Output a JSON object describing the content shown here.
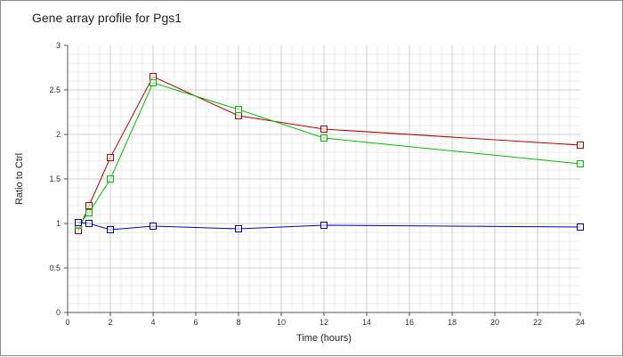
{
  "chart_data": {
    "type": "line",
    "title": "Gene array profile for Pgs1",
    "xlabel": "Time (hours)",
    "ylabel": "Ratio to Ctrl",
    "xlim": [
      0,
      24
    ],
    "ylim": [
      0,
      3
    ],
    "x_ticks": [
      "0",
      "2",
      "4",
      "6",
      "8",
      "10",
      "12",
      "14",
      "16",
      "18",
      "20",
      "22",
      "24"
    ],
    "y_ticks": [
      "0",
      "0.5",
      "1",
      "1.5",
      "2",
      "2.5",
      "3"
    ],
    "grid": true,
    "legend": "none",
    "series": [
      {
        "color": "#c00000",
        "marker": "square-open",
        "points": [
          {
            "x": 0.5,
            "y": 0.92
          },
          {
            "x": 1,
            "y": 1.2
          },
          {
            "x": 2,
            "y": 1.74
          },
          {
            "x": 4,
            "y": 2.65
          },
          {
            "x": 8,
            "y": 2.21
          },
          {
            "x": 12,
            "y": 2.06
          },
          {
            "x": 24,
            "y": 1.88
          }
        ]
      },
      {
        "color": "#00c000",
        "marker": "square-open",
        "points": [
          {
            "x": 0.5,
            "y": 0.98
          },
          {
            "x": 1,
            "y": 1.12
          },
          {
            "x": 2,
            "y": 1.5
          },
          {
            "x": 4,
            "y": 2.58
          },
          {
            "x": 8,
            "y": 2.28
          },
          {
            "x": 12,
            "y": 1.96
          },
          {
            "x": 24,
            "y": 1.67
          }
        ]
      },
      {
        "color": "#0000c0",
        "marker": "square-open",
        "points": [
          {
            "x": 0.5,
            "y": 1.01
          },
          {
            "x": 1,
            "y": 1.0
          },
          {
            "x": 2,
            "y": 0.93
          },
          {
            "x": 4,
            "y": 0.97
          },
          {
            "x": 8,
            "y": 0.94
          },
          {
            "x": 12,
            "y": 0.98
          },
          {
            "x": 24,
            "y": 0.96
          }
        ]
      }
    ]
  }
}
